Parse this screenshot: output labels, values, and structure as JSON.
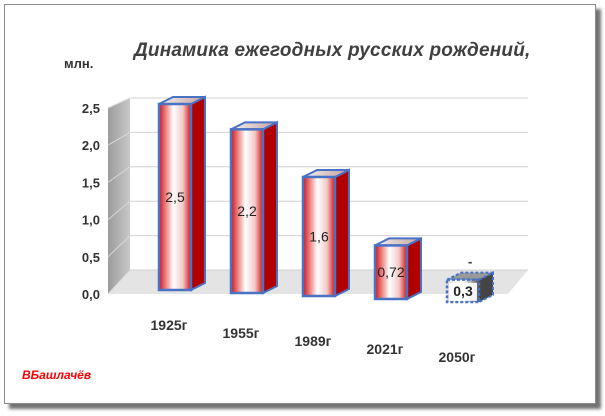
{
  "unit_label": "млн.",
  "author": "ВБашлачёв",
  "chart_data": {
    "type": "bar",
    "title": "Динамика ежегодных русских  рождений,",
    "categories": [
      "1925г",
      "1955г",
      "1989г",
      "2021г",
      "2050г"
    ],
    "values": [
      2.5,
      2.2,
      1.6,
      0.72,
      0.3
    ],
    "data_labels": [
      "2,5",
      "2,2",
      "1,6",
      "0,72",
      "0,3"
    ],
    "extra_label": "-",
    "ylim": [
      0,
      2.5
    ],
    "y_ticks": [
      "0,0",
      "0,5",
      "1,0",
      "1,5",
      "2,0",
      "2,5"
    ],
    "grid": true,
    "colors": {
      "bar_front_edge": "#ffffff",
      "bar_front_mid": "#d81010",
      "bar_side": "#b00000",
      "bar_border": "#4a72c4",
      "forecast_bar": "#555555",
      "wall": "#c8c8c8",
      "author_text": "#ff0000"
    }
  }
}
